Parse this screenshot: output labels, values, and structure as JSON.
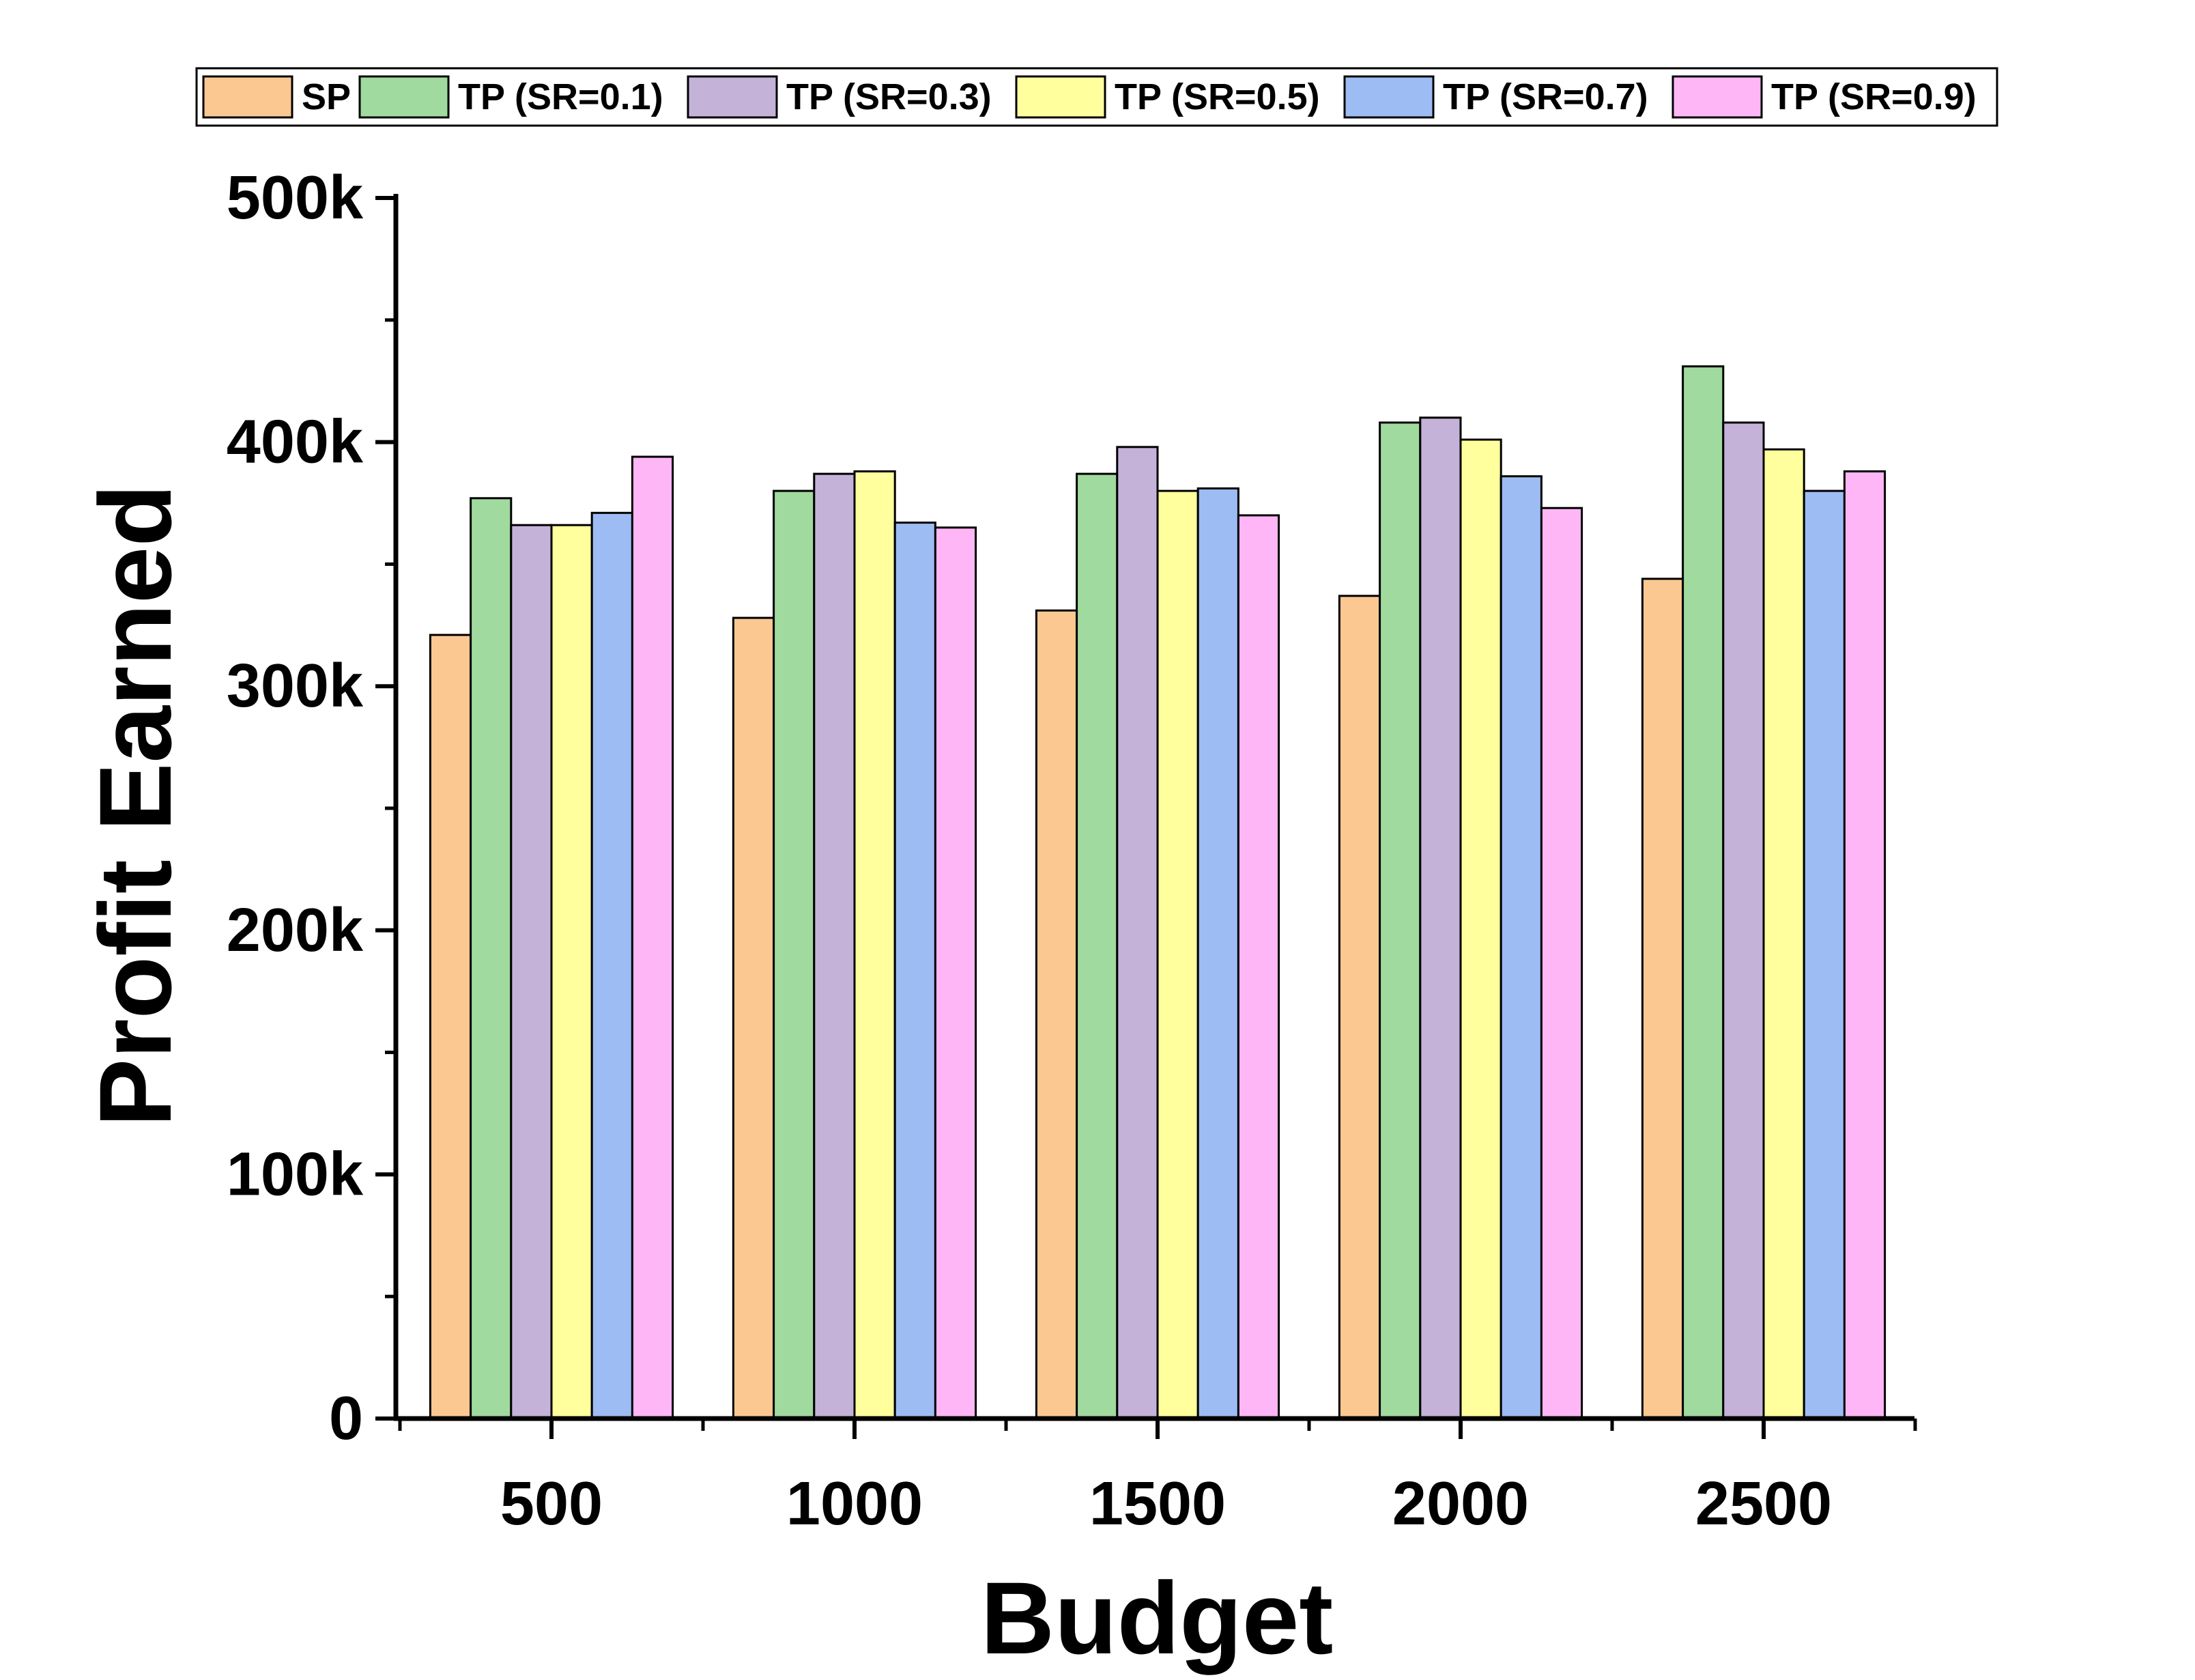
{
  "chart_data": {
    "type": "bar",
    "title": "",
    "xlabel": "Budget",
    "ylabel": "Profit Earned",
    "ylim": [
      0,
      500000
    ],
    "yticks": [
      0,
      100000,
      200000,
      300000,
      400000,
      500000
    ],
    "ytick_labels": [
      "0",
      "100k",
      "200k",
      "300k",
      "400k",
      "500k"
    ],
    "categories": [
      "500",
      "1000",
      "1500",
      "2000",
      "2500"
    ],
    "series": [
      {
        "name": "SP",
        "color": "#FCC892",
        "values": [
          321000,
          328000,
          331000,
          337000,
          344000
        ]
      },
      {
        "name": "TP (SR=0.1)",
        "color": "#A0DA9E",
        "values": [
          377000,
          380000,
          387000,
          408000,
          431000
        ]
      },
      {
        "name": "TP (SR=0.3)",
        "color": "#C4B2D9",
        "values": [
          366000,
          387000,
          398000,
          410000,
          408000
        ]
      },
      {
        "name": "TP (SR=0.5)",
        "color": "#FFFF9D",
        "values": [
          366000,
          388000,
          380000,
          401000,
          397000
        ]
      },
      {
        "name": "TP (SR=0.7)",
        "color": "#9DBCF3",
        "values": [
          371000,
          367000,
          381000,
          386000,
          380000
        ]
      },
      {
        "name": "TP (SR=0.9)",
        "color": "#FEB6F6",
        "values": [
          394000,
          365000,
          370000,
          373000,
          388000
        ]
      }
    ],
    "grid": false,
    "legend": "top"
  }
}
